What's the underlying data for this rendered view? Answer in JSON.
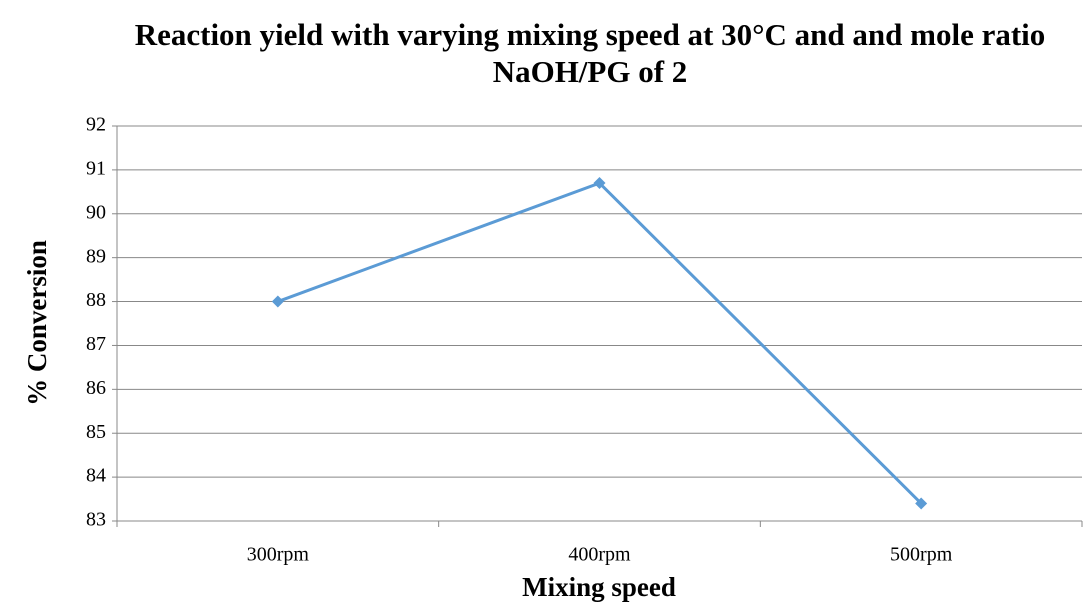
{
  "chart_data": {
    "type": "line",
    "title": "Reaction yield with varying mixing speed at 30°C and and mole ratio NaOH/PG of 2",
    "x_label": "Mixing speed",
    "y_label": "% Conversion",
    "categories": [
      "300rpm",
      "400rpm",
      "500rpm"
    ],
    "series": [
      {
        "name": "% Conversion",
        "color": "#5b9bd5",
        "values": [
          88.0,
          90.7,
          83.4
        ]
      }
    ],
    "ylim": [
      83,
      92
    ],
    "yticks": [
      83,
      84,
      85,
      86,
      87,
      88,
      89,
      90,
      91,
      92
    ],
    "grid": true
  }
}
